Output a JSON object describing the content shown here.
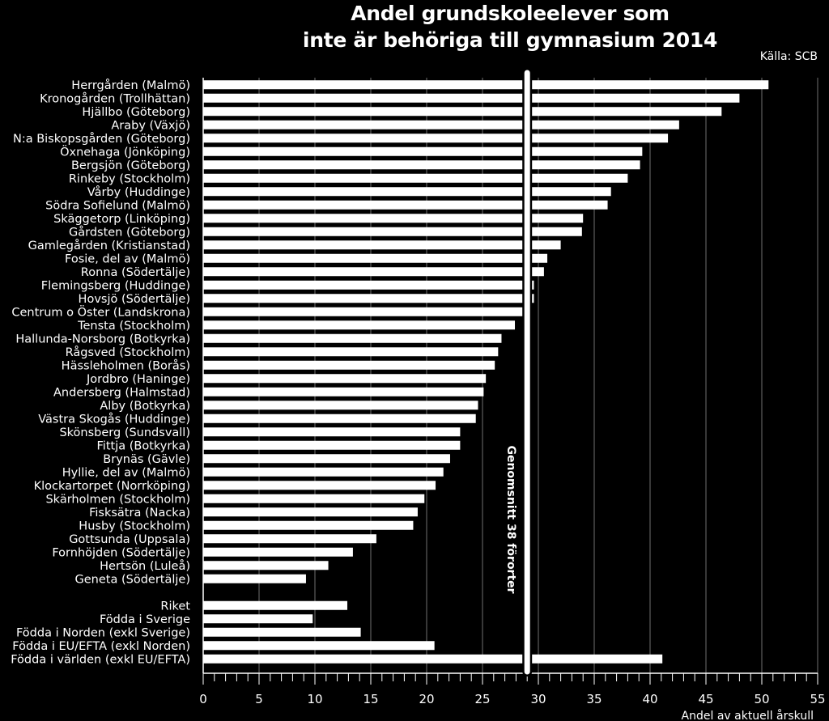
{
  "chart_data": {
    "type": "bar",
    "orientation": "horizontal",
    "title_lines": [
      "Andel grundskoleelever som",
      "inte är behöriga till gymnasium 2014"
    ],
    "source": "Källa: SCB",
    "xlabel": "Andel av aktuell årskull",
    "xlim": [
      0,
      55
    ],
    "xticks": [
      0,
      5,
      10,
      15,
      20,
      25,
      30,
      35,
      40,
      45,
      50,
      55
    ],
    "grid": true,
    "categories": [
      "Herrgården (Malmö)",
      "Kronogården (Trollhättan)",
      "Hjällbo (Göteborg)",
      "Araby (Växjö)",
      "N:a Biskopsgården (Göteborg)",
      "Öxnehaga (Jönköping)",
      "Bergsjön (Göteborg)",
      "Rinkeby (Stockholm)",
      "Vårby (Huddinge)",
      "Södra Sofielund (Malmö)",
      "Skäggetorp (Linköping)",
      "Gårdsten (Göteborg)",
      "Gamlegården (Kristianstad)",
      "Fosie, del av (Malmö)",
      "Ronna (Södertälje)",
      "Flemingsberg (Huddinge)",
      "Hovsjö (Södertälje)",
      "Centrum o Öster (Landskrona)",
      "Tensta (Stockholm)",
      "Hallunda-Norsborg (Botkyrka)",
      "Rågsved (Stockholm)",
      "Hässleholmen (Borås)",
      "Jordbro (Haninge)",
      "Andersberg (Halmstad)",
      "Alby (Botkyrka)",
      "Västra Skogås (Huddinge)",
      "Skönsberg (Sundsvall)",
      "Fittja (Botkyrka)",
      "Brynäs (Gävle)",
      "Hyllie, del av (Malmö)",
      "Klockartorpet (Norrköping)",
      "Skärholmen (Stockholm)",
      "Fisksätra (Nacka)",
      "Husby (Stockholm)",
      "Gottsunda (Uppsala)",
      "Fornhöjden (Södertälje)",
      "Hertsön (Luleå)",
      "Geneta (Södertälje)",
      "",
      "Riket",
      "Födda i Sverige",
      "Födda i Norden (exkl Sverige)",
      "Födda i EU/EFTA (exkl Norden)",
      "Födda i världen (exkl EU/EFTA)"
    ],
    "values": [
      50.6,
      48.0,
      46.4,
      42.6,
      41.6,
      39.3,
      39.1,
      38.0,
      36.5,
      36.2,
      34.0,
      33.9,
      32.0,
      30.8,
      30.5,
      29.6,
      29.6,
      29.3,
      27.9,
      26.7,
      26.4,
      26.1,
      25.3,
      25.1,
      24.6,
      24.4,
      23.0,
      23.0,
      22.1,
      21.5,
      20.8,
      19.8,
      19.2,
      18.8,
      15.5,
      13.4,
      11.2,
      9.2,
      null,
      12.9,
      9.8,
      14.1,
      20.7,
      41.1
    ],
    "reference_line": {
      "value": 29.0,
      "label": "Genomsnitt 38 förorter"
    },
    "colors": {
      "background": "#000000",
      "bar": "#ffffff",
      "grid": "#ffffff",
      "text": "#ffffff"
    }
  }
}
